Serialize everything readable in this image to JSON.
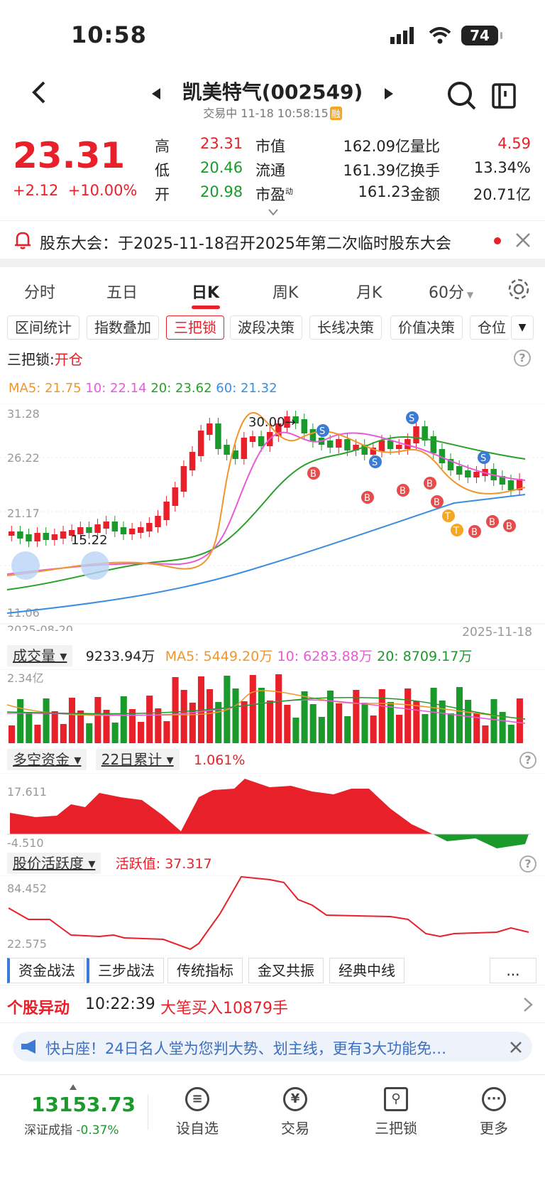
{
  "status_bar": {
    "time": "10:58",
    "battery": "74"
  },
  "header": {
    "title": "凯美特气(002549)",
    "subtitle": "交易中 11-18 10:58:15",
    "badge": "融"
  },
  "quote": {
    "price": "23.31",
    "change": "+2.12",
    "change_pct": "+10.00%",
    "rows": [
      [
        {
          "l": "高",
          "v": "23.31",
          "c": "red"
        },
        {
          "l": "市值",
          "v": "162.09亿"
        },
        {
          "l": "量比",
          "v": "4.59",
          "c": "red"
        }
      ],
      [
        {
          "l": "低",
          "v": "20.46",
          "c": "green"
        },
        {
          "l": "流通",
          "v": "161.39亿"
        },
        {
          "l": "换手",
          "v": "13.34%"
        }
      ],
      [
        {
          "l": "开",
          "v": "20.98",
          "c": "green"
        },
        {
          "l": "市盈",
          "v": "161.23",
          "sup": "动"
        },
        {
          "l": "金额",
          "v": "20.71亿"
        }
      ]
    ]
  },
  "notice": {
    "text": "股东大会：于2025-11-18召开2025年第二次临时股东大会"
  },
  "tabs": [
    "分时",
    "五日",
    "日K",
    "周K",
    "月K",
    "60分"
  ],
  "tools": [
    "区间统计",
    "指数叠加",
    "三把锁",
    "波段决策",
    "长线决策",
    "价值决策",
    "仓位"
  ],
  "indicator": {
    "name": "三把锁:",
    "state": "开仓"
  },
  "ma": {
    "ma5": "MA5: 21.75",
    "ma10": "10: 22.14",
    "ma20": "20: 23.62",
    "ma60": "60: 21.32"
  },
  "kline": {
    "y_ticks": [
      "31.28",
      "26.22",
      "21.17",
      "11.06"
    ],
    "date_start": "2025-08-20",
    "date_end": "2025-11-18",
    "annot_high": "30.00→",
    "annot_low": "15.22"
  },
  "volume": {
    "label": "成交量",
    "value": "9233.94万",
    "ma5": "MA5: 5449.20万",
    "ma10": "10: 6283.88万",
    "ma20": "20: 8709.17万",
    "top": "2.34亿"
  },
  "fund": {
    "label": "多空资金",
    "period": "22日累计",
    "value": "1.061%",
    "top": "17.611",
    "bottom": "-4.510"
  },
  "activity": {
    "label": "股价活跃度",
    "value": "活跃值: 37.317",
    "top": "84.452",
    "bottom": "22.575"
  },
  "strategies": [
    "资金战法",
    "三步战法",
    "传统指标",
    "金叉共振",
    "经典中线",
    "..."
  ],
  "anomaly": {
    "label": "个股异动",
    "time": "10:22:39",
    "text": "大笔买入10879手"
  },
  "banner": {
    "text": "快占座！24日名人堂为您判大势、划主线，更有3大功能免…"
  },
  "bottom": {
    "index_value": "13153.73",
    "index_name": "深证成指",
    "index_change": "-0.37%",
    "nav": [
      "设自选",
      "交易",
      "三把锁",
      "更多"
    ]
  },
  "colors": {
    "up": "#e8202a",
    "down": "#1a9a2a",
    "ma5": "#f0962c",
    "ma10": "#e75bd8",
    "ma20": "#2aa02a",
    "ma60": "#3b8de0"
  }
}
